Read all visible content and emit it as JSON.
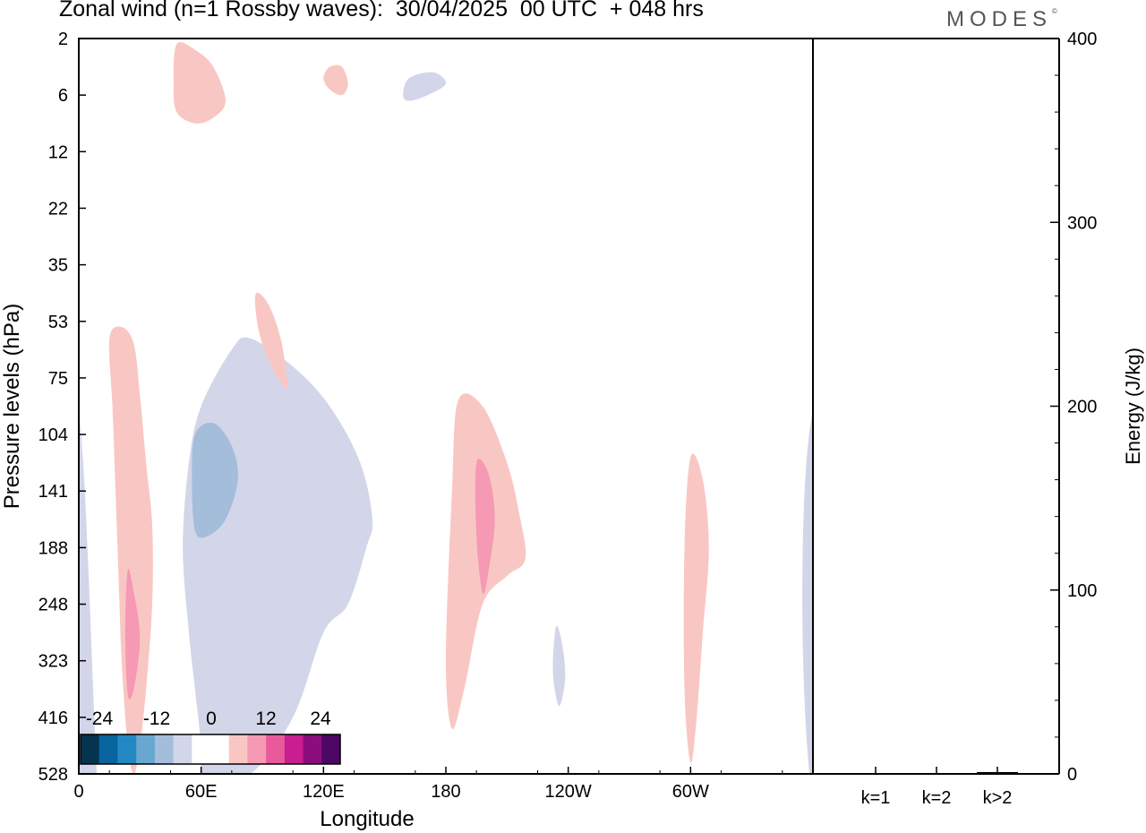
{
  "title": "Zonal wind (n=1 Rossby waves):  30/04/2025  00 UTC  + 048 hrs",
  "logo_text": "MODES",
  "logo_mark": "©",
  "chart_data": [
    {
      "type": "heatmap",
      "xlabel": "Longitude",
      "ylabel": "Pressure levels (hPa)",
      "x_ticks": [
        "0",
        "60E",
        "120E",
        "180",
        "120W",
        "60W"
      ],
      "y_ticks": [
        "2",
        "6",
        "12",
        "22",
        "35",
        "53",
        "75",
        "104",
        "141",
        "188",
        "248",
        "323",
        "416",
        "528"
      ],
      "colorbar": {
        "tick_labels": [
          "-24",
          "-12",
          "0",
          "12",
          "24"
        ],
        "colors": [
          "#06344f",
          "#0a64a0",
          "#2388c4",
          "#68a7d0",
          "#a3bddb",
          "#d3d5e8",
          "#ffffff",
          "#ffffff",
          "#f9c7c3",
          "#f599b4",
          "#e85a9c",
          "#c81e8f",
          "#8c0d7c",
          "#4d0764"
        ]
      },
      "contours": [
        {
          "level": "negative-light",
          "color": "#d3d5e8",
          "x": [
            21,
            28,
            35,
            40,
            44,
            47,
            48,
            46,
            41,
            35,
            28,
            25,
            20,
            18,
            17,
            18,
            19,
            20,
            20,
            21
          ],
          "p_index": [
            13,
            13,
            12,
            10.5,
            10,
            9,
            8.5,
            7.5,
            6.5,
            5.8,
            5.3,
            5.5,
            6.5,
            7.5,
            9,
            10.5,
            11.5,
            12.5,
            12.9,
            13
          ]
        },
        {
          "level": "negative-mid",
          "color": "#a3bddb",
          "x": [
            19,
            22,
            25,
            26,
            24,
            21,
            19,
            18.5,
            19
          ],
          "p_index": [
            7,
            6.8,
            7.2,
            7.8,
            8.5,
            8.8,
            8.7,
            7.8,
            7
          ]
        },
        {
          "level": "positive-light",
          "color": "#f9c7c3",
          "x": [
            5,
            7,
            9,
            10,
            11,
            12,
            12,
            11,
            10,
            9,
            8,
            7,
            6.5,
            6,
            5.5,
            5
          ],
          "p_index": [
            5.3,
            5.1,
            5.4,
            6.3,
            7.5,
            8.6,
            10,
            11.5,
            12.5,
            13,
            12.5,
            11,
            9.5,
            8,
            6.5,
            5.3
          ]
        },
        {
          "level": "positive-mid",
          "color": "#f599b4",
          "x": [
            8,
            9,
            10,
            9,
            8,
            7.6,
            8
          ],
          "p_index": [
            9.4,
            9.8,
            10.6,
            11.5,
            11.6,
            10.5,
            9.4
          ]
        },
        {
          "level": "positive-light",
          "color": "#f9c7c3",
          "x": [
            16,
            19,
            22,
            24,
            22,
            19,
            16,
            15.5,
            16
          ],
          "p_index": [
            0.1,
            0.2,
            0.5,
            1.1,
            1.4,
            1.5,
            1.3,
            0.8,
            0.1
          ]
        },
        {
          "level": "positive-light",
          "color": "#f9c7c3",
          "x": [
            29,
            31,
            33,
            34,
            34,
            32,
            30,
            29,
            29
          ],
          "p_index": [
            4.5,
            4.7,
            5.3,
            6,
            6.2,
            5.9,
            5.4,
            4.9,
            4.5
          ]
        },
        {
          "level": "positive-light",
          "color": "#f9c7c3",
          "x": [
            62,
            66,
            70,
            72,
            73,
            70,
            66,
            63,
            61,
            60,
            61,
            62
          ],
          "p_index": [
            6.4,
            6.5,
            7.5,
            8.4,
            9.2,
            9.5,
            10,
            11.5,
            12.2,
            11,
            8,
            6.4
          ]
        },
        {
          "level": "positive-mid",
          "color": "#f599b4",
          "x": [
            65,
            67,
            68,
            67,
            66,
            65,
            65
          ],
          "p_index": [
            7.5,
            7.7,
            8.5,
            9.4,
            9.8,
            8.8,
            7.5
          ]
        },
        {
          "level": "positive-light",
          "color": "#f9c7c3",
          "x": [
            100,
            102,
            103,
            102,
            101,
            100,
            99,
            99,
            100
          ],
          "p_index": [
            7.4,
            7.8,
            9,
            10.5,
            12,
            12.8,
            11.5,
            9,
            7.4
          ]
        },
        {
          "level": "negative-light",
          "color": "#d3d5e8",
          "x": [
            78,
            79,
            79.5,
            78.5,
            77.5,
            78
          ],
          "p_index": [
            10.4,
            10.7,
            11.3,
            11.8,
            11.2,
            10.4
          ]
        },
        {
          "level": "negative-light",
          "color": "#d3d5e8",
          "x": [
            54,
            58,
            60,
            57,
            54,
            53,
            54
          ],
          "p_index": [
            0.7,
            0.6,
            0.8,
            1.0,
            1.1,
            1.0,
            0.7
          ]
        },
        {
          "level": "positive-light",
          "color": "#f9c7c3",
          "x": [
            41,
            43,
            44,
            43,
            41,
            40,
            41
          ],
          "p_index": [
            0.5,
            0.5,
            0.8,
            1.0,
            0.9,
            0.7,
            0.5
          ]
        }
      ]
    },
    {
      "type": "bar",
      "categories": [
        "k=1",
        "k=2",
        "k>2"
      ],
      "values": [
        0,
        0,
        0.5
      ],
      "ylabel": "Energy (J/kg)",
      "ylim": [
        0,
        400
      ],
      "y_ticks": [
        "0",
        "100",
        "200",
        "300",
        "400"
      ]
    }
  ]
}
